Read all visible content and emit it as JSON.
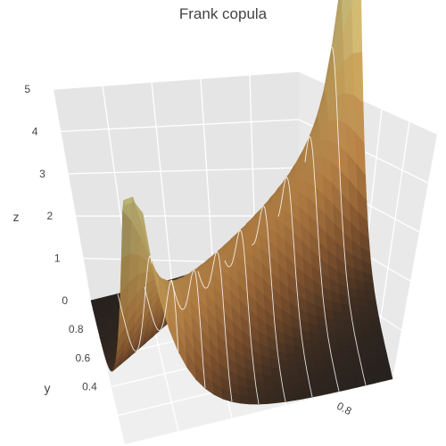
{
  "chart_data": {
    "type": "surface3d",
    "title": "Frank copula",
    "xlabel": "",
    "ylabel": "y",
    "zlabel": "z",
    "x_range": [
      0,
      1
    ],
    "y_range": [
      0,
      1
    ],
    "zlim": [
      0,
      5
    ],
    "z_ticks": [
      "0",
      "1",
      "2",
      "3",
      "4",
      "5"
    ],
    "y_ticks": [
      "0.4",
      "0.6",
      "0.8"
    ],
    "y_tick_values": [
      0.4,
      0.6,
      0.8
    ],
    "x_ticks": [
      "0.8"
    ],
    "x_tick_values": [
      0.8
    ],
    "surface": {
      "function": "frank_copula_density",
      "theta": 8,
      "z_max": 5,
      "peaks": [
        {
          "x": 1.0,
          "y": 1.0,
          "z": 5.0
        },
        {
          "x": 0.0,
          "y": 0.0,
          "z": 3.3
        }
      ],
      "contours_on": true,
      "colorscale": [
        "#2b2623",
        "#4a3526",
        "#8c5a33",
        "#c48a4a",
        "#d3ad62",
        "#d8d08a"
      ]
    },
    "grid": true,
    "background": "#ebebeb"
  }
}
